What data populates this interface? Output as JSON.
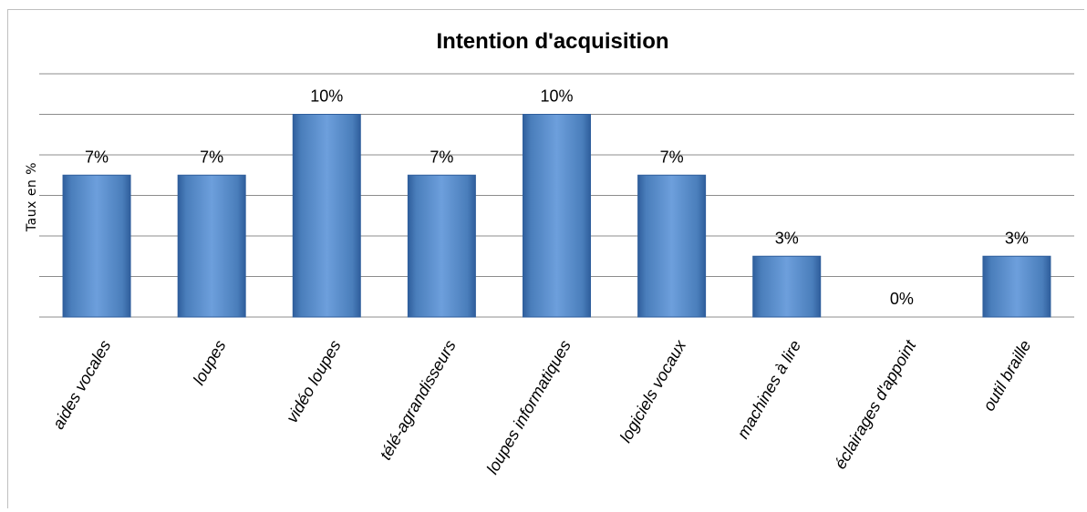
{
  "chart_data": {
    "type": "bar",
    "title": "Intention d'acquisition",
    "xlabel": "",
    "ylabel": "Taux en %",
    "categories": [
      "aides vocales",
      "loupes",
      "vidéo loupes",
      "télé-agrandisseurs",
      "loupes informatiques",
      "logiciels vocaux",
      "machines à lire",
      "éclairages d'appoint",
      "outil braille"
    ],
    "values": [
      7,
      7,
      10,
      7,
      10,
      7,
      3,
      0,
      3
    ],
    "data_labels": [
      "7%",
      "7%",
      "10%",
      "7%",
      "10%",
      "7%",
      "3%",
      "0%",
      "3%"
    ],
    "ylim": [
      0,
      12
    ],
    "grid": true,
    "legend": "none",
    "colors": {
      "bar": "#4a7ebb",
      "bar_light": "#6d9fdc",
      "bar_dark": "#2f5e9c",
      "gridline": "#8c8c8c"
    }
  }
}
